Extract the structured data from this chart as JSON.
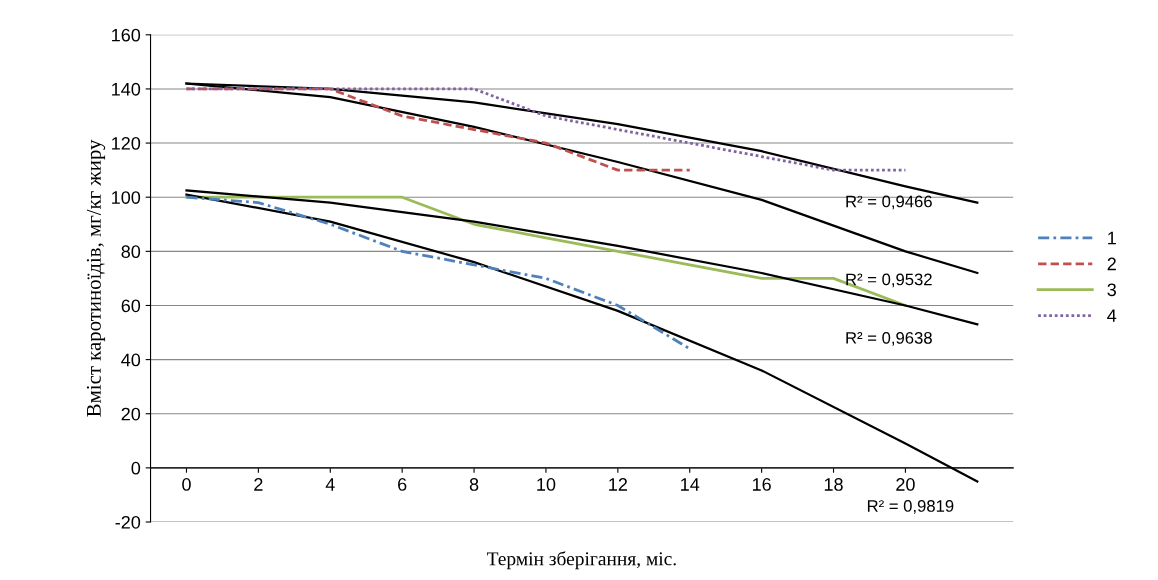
{
  "chart_data": {
    "type": "line",
    "xlabel": "Термін зберігання, міс.",
    "ylabel": "Вміст каротиноїдів, мг/кг жиру",
    "xlim": [
      -1,
      23
    ],
    "xticks": [
      0,
      2,
      4,
      6,
      8,
      10,
      12,
      14,
      16,
      18,
      20
    ],
    "ylim": [
      -20,
      160
    ],
    "yticks": [
      -20,
      0,
      20,
      40,
      60,
      80,
      100,
      120,
      140,
      160
    ],
    "grid": "y",
    "legend": "right",
    "series": [
      {
        "name": "1",
        "color": "#4f81bd",
        "line_style": "dashdot",
        "x": [
          0,
          2,
          4,
          6,
          8,
          10,
          12,
          14
        ],
        "values": [
          100,
          98,
          90,
          80,
          75,
          70,
          60,
          44
        ]
      },
      {
        "name": "2",
        "color": "#c0504d",
        "line_style": "dashed",
        "x": [
          0,
          2,
          4,
          6,
          8,
          10,
          12,
          14
        ],
        "values": [
          140,
          140,
          140,
          130,
          125,
          120,
          110,
          110
        ]
      },
      {
        "name": "3",
        "color": "#9bbb59",
        "line_style": "solid",
        "x": [
          0,
          2,
          4,
          6,
          8,
          10,
          12,
          14,
          16,
          18,
          20
        ],
        "values": [
          100,
          100,
          100,
          100,
          90,
          85,
          80,
          75,
          70,
          70,
          60
        ]
      },
      {
        "name": "4",
        "color": "#8064a2",
        "line_style": "dotted",
        "x": [
          0,
          2,
          4,
          6,
          8,
          10,
          12,
          14,
          16,
          18,
          20
        ],
        "values": [
          140,
          140,
          140,
          140,
          140,
          130,
          125,
          120,
          115,
          110,
          110
        ]
      },
      {
        "color": "#000000",
        "line_style": "solid",
        "x": [
          0,
          4,
          8,
          12,
          16,
          20,
          22
        ],
        "values": [
          142,
          140,
          135,
          127,
          117,
          104,
          98
        ]
      },
      {
        "color": "#000000",
        "line_style": "solid",
        "x": [
          0,
          4,
          8,
          12,
          16,
          20,
          22
        ],
        "values": [
          142,
          137,
          126,
          113,
          99,
          80,
          72
        ]
      },
      {
        "color": "#000000",
        "line_style": "solid",
        "x": [
          0,
          4,
          8,
          12,
          16,
          20,
          22
        ],
        "values": [
          102.5,
          98,
          91,
          82,
          72,
          60,
          53
        ]
      },
      {
        "color": "#000000",
        "line_style": "solid",
        "x": [
          0,
          4,
          8,
          12,
          16,
          20,
          22
        ],
        "values": [
          101,
          91,
          76,
          58,
          36,
          9,
          -5
        ]
      }
    ],
    "annotations": [
      "R² = 0,9466",
      "R² = 0,9532",
      "R² = 0,9638",
      "R² = 0,9819"
    ]
  }
}
